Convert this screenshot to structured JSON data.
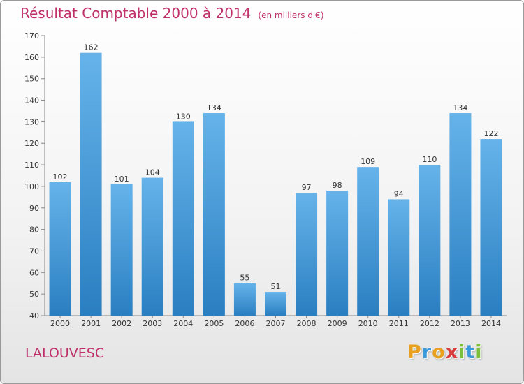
{
  "title": "Résultat Comptable 2000 à 2014",
  "subtitle": "(en milliers d'€)",
  "commune": "LALOUVESC",
  "brand": {
    "name": "Proxiti",
    "letters": [
      {
        "ch": "P",
        "color": "#e8a020"
      },
      {
        "ch": "r",
        "color": "#3a9ad9"
      },
      {
        "ch": "o",
        "color": "#e8a020"
      },
      {
        "ch": "x",
        "color": "#d93a3a"
      },
      {
        "ch": "i",
        "color": "#7cbf3a"
      },
      {
        "ch": "t",
        "color": "#3a9ad9"
      },
      {
        "ch": "i",
        "color": "#7cbf3a"
      }
    ]
  },
  "colors": {
    "title": "#c0306a",
    "bar_light": "#66b3ea",
    "bar_dark": "#2a7fc1"
  },
  "chart_data": {
    "type": "bar",
    "title": "Résultat Comptable 2000 à 2014",
    "subtitle": "(en milliers d'€)",
    "categories": [
      "2000",
      "2001",
      "2002",
      "2003",
      "2004",
      "2005",
      "2006",
      "2007",
      "2008",
      "2009",
      "2010",
      "2011",
      "2012",
      "2013",
      "2014"
    ],
    "values": [
      102,
      162,
      101,
      104,
      130,
      134,
      55,
      51,
      97,
      98,
      109,
      94,
      110,
      134,
      122
    ],
    "ylim": [
      40,
      170
    ],
    "yticks": [
      40,
      50,
      60,
      70,
      80,
      90,
      100,
      110,
      120,
      130,
      140,
      150,
      160,
      170
    ],
    "grid": false,
    "data_labels": true
  }
}
